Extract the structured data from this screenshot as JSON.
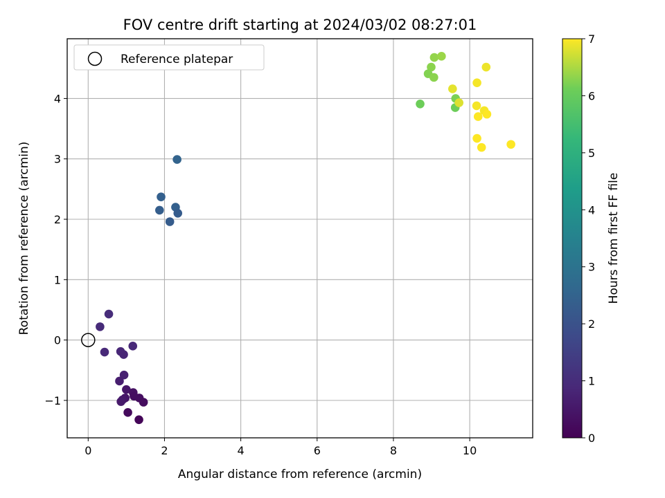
{
  "chart_data": {
    "type": "scatter",
    "title": "FOV centre drift starting at 2024/03/02 08:27:01",
    "xlabel": "Angular distance from reference (arcmin)",
    "ylabel": "Rotation from reference (arcmin)",
    "xlim": [
      -0.55,
      11.65
    ],
    "ylim": [
      -1.62,
      4.99
    ],
    "xticks": [
      0,
      2,
      4,
      6,
      8,
      10
    ],
    "yticks": [
      -1,
      0,
      1,
      2,
      3,
      4
    ],
    "xtick_labels": [
      "0",
      "2",
      "4",
      "6",
      "8",
      "10"
    ],
    "ytick_labels": [
      "−1",
      "0",
      "1",
      "2",
      "3",
      "4"
    ],
    "grid": true,
    "colormap": "viridis",
    "colorbar": {
      "label": "Hours from first FF file",
      "range": [
        0,
        7
      ],
      "ticks": [
        0,
        1,
        2,
        3,
        4,
        5,
        6,
        7
      ],
      "tick_labels": [
        "0",
        "1",
        "2",
        "3",
        "4",
        "5",
        "6",
        "7"
      ]
    },
    "legend": {
      "placement": "upper-left",
      "entries": [
        "Reference platepar"
      ]
    },
    "reference_point": {
      "x": 0,
      "y": 0
    },
    "points": [
      {
        "x": 0.54,
        "y": 0.43,
        "hours": 1.0
      },
      {
        "x": 0.31,
        "y": 0.22,
        "hours": 0.95
      },
      {
        "x": 0.43,
        "y": -0.2,
        "hours": 0.9
      },
      {
        "x": 1.17,
        "y": -0.1,
        "hours": 0.9
      },
      {
        "x": 0.85,
        "y": -0.19,
        "hours": 0.85
      },
      {
        "x": 0.93,
        "y": -0.24,
        "hours": 0.8
      },
      {
        "x": 0.94,
        "y": -0.58,
        "hours": 0.7
      },
      {
        "x": 0.82,
        "y": -0.68,
        "hours": 0.65
      },
      {
        "x": 1.0,
        "y": -0.82,
        "hours": 0.45
      },
      {
        "x": 1.18,
        "y": -0.87,
        "hours": 0.35
      },
      {
        "x": 1.2,
        "y": -0.93,
        "hours": 0.3
      },
      {
        "x": 0.97,
        "y": -0.96,
        "hours": 0.45
      },
      {
        "x": 1.34,
        "y": -0.96,
        "hours": 0.3
      },
      {
        "x": 0.9,
        "y": -0.99,
        "hours": 0.5
      },
      {
        "x": 0.86,
        "y": -1.02,
        "hours": 0.55
      },
      {
        "x": 1.45,
        "y": -1.03,
        "hours": 0.25
      },
      {
        "x": 1.04,
        "y": -1.2,
        "hours": 0.2
      },
      {
        "x": 1.33,
        "y": -1.32,
        "hours": 0.1
      },
      {
        "x": 2.33,
        "y": 2.99,
        "hours": 2.5
      },
      {
        "x": 1.91,
        "y": 2.37,
        "hours": 2.4
      },
      {
        "x": 2.29,
        "y": 2.2,
        "hours": 2.4
      },
      {
        "x": 1.87,
        "y": 2.15,
        "hours": 2.35
      },
      {
        "x": 2.35,
        "y": 2.1,
        "hours": 2.3
      },
      {
        "x": 2.14,
        "y": 1.96,
        "hours": 2.3
      },
      {
        "x": 9.07,
        "y": 4.68,
        "hours": 6.35
      },
      {
        "x": 9.26,
        "y": 4.7,
        "hours": 6.4
      },
      {
        "x": 8.99,
        "y": 4.52,
        "hours": 6.3
      },
      {
        "x": 8.91,
        "y": 4.41,
        "hours": 6.25
      },
      {
        "x": 9.06,
        "y": 4.35,
        "hours": 6.3
      },
      {
        "x": 8.7,
        "y": 3.91,
        "hours": 6.1
      },
      {
        "x": 9.63,
        "y": 4.0,
        "hours": 6.2
      },
      {
        "x": 9.62,
        "y": 3.85,
        "hours": 6.1
      },
      {
        "x": 9.55,
        "y": 4.16,
        "hours": 6.85
      },
      {
        "x": 9.72,
        "y": 3.93,
        "hours": 6.8
      },
      {
        "x": 10.43,
        "y": 4.52,
        "hours": 6.9
      },
      {
        "x": 10.19,
        "y": 4.26,
        "hours": 6.95
      },
      {
        "x": 10.18,
        "y": 3.88,
        "hours": 6.95
      },
      {
        "x": 10.38,
        "y": 3.8,
        "hours": 6.95
      },
      {
        "x": 10.45,
        "y": 3.74,
        "hours": 7.0
      },
      {
        "x": 10.22,
        "y": 3.7,
        "hours": 7.0
      },
      {
        "x": 10.19,
        "y": 3.34,
        "hours": 7.0
      },
      {
        "x": 10.31,
        "y": 3.19,
        "hours": 7.0
      },
      {
        "x": 11.08,
        "y": 3.24,
        "hours": 7.0
      }
    ]
  }
}
